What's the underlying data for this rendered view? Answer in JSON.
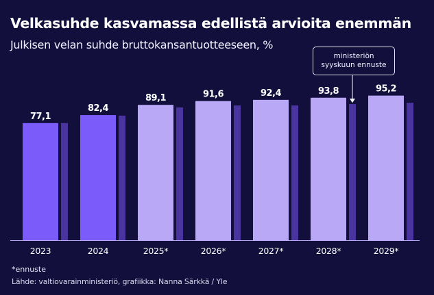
{
  "header": {
    "title": "Velkasuhde kasvamassa edellistä arvioita enemmän",
    "subtitle": "Julkisen velan suhde bruttokansantuotteeseen, %"
  },
  "annotation": {
    "line1": "ministeriön",
    "line2": "syyskuun ennuste"
  },
  "footer": {
    "footnote": "*ennuste",
    "source": "Lähde: valtiovarainministeriö, grafiikka: Nanna Särkkä / Yle"
  },
  "colors": {
    "background": "#120f3d",
    "actual": "#7b5cfa",
    "forecast": "#b8a8f5",
    "ministry_september": "#4a35a0",
    "baseline": "#b8a8f5"
  },
  "chart_data": {
    "type": "bar",
    "title": "Velkasuhde kasvamassa edellistä arvioita enemmän",
    "subtitle": "Julkisen velan suhde bruttokansantuotteeseen, %",
    "xlabel": "",
    "ylabel": "%",
    "ylim": [
      0,
      100
    ],
    "grid": false,
    "categories": [
      "2023",
      "2024",
      "2025*",
      "2026*",
      "2027*",
      "2028*",
      "2029*"
    ],
    "series": [
      {
        "name": "Velkasuhde",
        "values": [
          77.1,
          82.4,
          89.1,
          91.6,
          92.4,
          93.8,
          95.2
        ],
        "labels": [
          "77,1",
          "82,4",
          "89,1",
          "91,6",
          "92,4",
          "93,8",
          "95,2"
        ],
        "kinds": [
          "actual",
          "actual",
          "forecast",
          "forecast",
          "forecast",
          "forecast",
          "forecast"
        ]
      },
      {
        "name": "ministeriön syyskuun ennuste",
        "values": [
          77.1,
          82.0,
          87.4,
          88.7,
          88.7,
          89.6,
          90.5
        ]
      }
    ],
    "annotation": {
      "text": "ministeriön syyskuun ennuste",
      "points_to": "2028*"
    },
    "footnote": "*ennuste",
    "source": "Lähde: valtiovarainministeriö, grafiikka: Nanna Särkkä / Yle"
  }
}
